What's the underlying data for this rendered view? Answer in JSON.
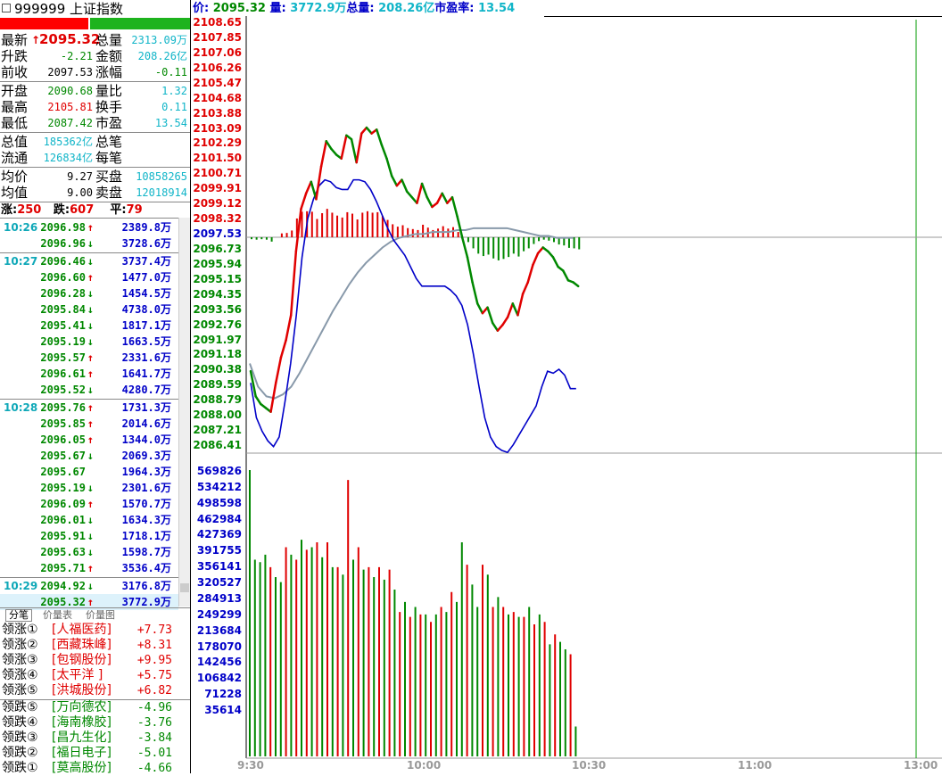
{
  "title": {
    "code": "999999",
    "name": "上证指数"
  },
  "quote": {
    "latest_label": "最新",
    "latest_arrow": "↑",
    "latest": "2095.32",
    "total_vol_label": "总量",
    "total_vol": "2313.09万",
    "change_label": "升跌",
    "change": "-2.21",
    "amount_label": "金额",
    "amount": "208.26亿",
    "prev_close_label": "前收",
    "prev_close": "2097.53",
    "pct_label": "涨幅",
    "pct": "-0.11",
    "open_label": "开盘",
    "open": "2090.68",
    "vol_ratio_label": "量比",
    "vol_ratio": "1.32",
    "high_label": "最高",
    "high": "2105.81",
    "turnover_label": "换手",
    "turnover": "0.11",
    "low_label": "最低",
    "low": "2087.42",
    "pe_label": "市盈",
    "pe": "13.54",
    "total_value_label": "总值",
    "total_value": "185362亿",
    "total_trades_label": "总笔",
    "float_value_label": "流通",
    "float_value": "126834亿",
    "per_trade_label": "每笔",
    "avg_price_label": "均价",
    "avg_price": "9.27",
    "buy_label": "买盘",
    "buy": "10858265",
    "avg_value_label": "均值",
    "avg_value": "9.00",
    "sell_label": "卖盘",
    "sell": "12018914",
    "up_label": "涨:",
    "up": "250",
    "down_label": "跌:",
    "down": "607",
    "flat_label": "平:",
    "flat": "79"
  },
  "ticks": [
    {
      "time": "10:26",
      "price": "2096.98",
      "dir": "up",
      "vol": "2389.8万"
    },
    {
      "time": "",
      "price": "2096.96",
      "dir": "down",
      "vol": "3728.6万"
    },
    {
      "time": "10:27",
      "price": "2096.46",
      "dir": "down",
      "vol": "3737.4万"
    },
    {
      "time": "",
      "price": "2096.60",
      "dir": "up",
      "vol": "1477.0万"
    },
    {
      "time": "",
      "price": "2096.28",
      "dir": "down",
      "vol": "1454.5万"
    },
    {
      "time": "",
      "price": "2095.84",
      "dir": "down",
      "vol": "4738.0万"
    },
    {
      "time": "",
      "price": "2095.41",
      "dir": "down",
      "vol": "1817.1万"
    },
    {
      "time": "",
      "price": "2095.19",
      "dir": "down",
      "vol": "1663.5万"
    },
    {
      "time": "",
      "price": "2095.57",
      "dir": "up",
      "vol": "2331.6万"
    },
    {
      "time": "",
      "price": "2096.61",
      "dir": "up",
      "vol": "1641.7万"
    },
    {
      "time": "",
      "price": "2095.52",
      "dir": "down",
      "vol": "4280.7万"
    },
    {
      "time": "10:28",
      "price": "2095.76",
      "dir": "up",
      "vol": "1731.3万"
    },
    {
      "time": "",
      "price": "2095.85",
      "dir": "up",
      "vol": "2014.6万"
    },
    {
      "time": "",
      "price": "2096.05",
      "dir": "up",
      "vol": "1344.0万"
    },
    {
      "time": "",
      "price": "2095.67",
      "dir": "down",
      "vol": "2069.3万"
    },
    {
      "time": "",
      "price": "2095.67",
      "dir": "flat",
      "vol": "1964.3万"
    },
    {
      "time": "",
      "price": "2095.19",
      "dir": "down",
      "vol": "2301.6万"
    },
    {
      "time": "",
      "price": "2096.09",
      "dir": "up",
      "vol": "1570.7万"
    },
    {
      "time": "",
      "price": "2096.01",
      "dir": "down",
      "vol": "1634.3万"
    },
    {
      "time": "",
      "price": "2095.91",
      "dir": "down",
      "vol": "1718.1万"
    },
    {
      "time": "",
      "price": "2095.63",
      "dir": "down",
      "vol": "1598.7万"
    },
    {
      "time": "",
      "price": "2095.71",
      "dir": "up",
      "vol": "3536.4万"
    },
    {
      "time": "10:29",
      "price": "2094.92",
      "dir": "down",
      "vol": "3176.8万"
    },
    {
      "time": "",
      "price": "2095.32",
      "dir": "up",
      "vol": "3772.9万"
    }
  ],
  "arrows": {
    "up": "↑",
    "down": "↓",
    "flat": ""
  },
  "tabs": [
    "分笔",
    "价量表",
    "价量图"
  ],
  "leaders_up": [
    {
      "label": "领涨①",
      "name": "[人福医药]",
      "chg": "+7.73"
    },
    {
      "label": "领涨②",
      "name": "[西藏珠峰]",
      "chg": "+8.31"
    },
    {
      "label": "领涨③",
      "name": "[包钢股份]",
      "chg": "+9.95"
    },
    {
      "label": "领涨④",
      "name": "[太平洋  ]",
      "chg": "+5.75"
    },
    {
      "label": "领涨⑤",
      "name": "[洪城股份]",
      "chg": "+6.82"
    }
  ],
  "leaders_down": [
    {
      "label": "领跌⑤",
      "name": "[万向德农]",
      "chg": "-4.96"
    },
    {
      "label": "领跌④",
      "name": "[海南橡胶]",
      "chg": "-3.76"
    },
    {
      "label": "领跌③",
      "name": "[昌九生化]",
      "chg": "-3.84"
    },
    {
      "label": "领跌②",
      "name": "[福日电子]",
      "chg": "-5.01"
    },
    {
      "label": "领跌①",
      "name": "[莫高股份]",
      "chg": "-4.66"
    }
  ],
  "top_info": {
    "price_label": "价:",
    "price": "2095.32",
    "vol_label": "量:",
    "vol": "3772.9万",
    "total_label": "总量:",
    "total": "208.26亿",
    "pe_label": "市盈率:",
    "pe": "13.54"
  },
  "colors": {
    "up": "#e00000",
    "down": "#008800",
    "avg": "#0000c8",
    "ma": "#8899aa"
  },
  "chart_data": {
    "type": "line",
    "x_ticks": [
      "9:30",
      "10:00",
      "10:30",
      "11:00",
      "13:00"
    ],
    "price_axis": [
      "2108.65",
      "2107.85",
      "2107.06",
      "2106.26",
      "2105.47",
      "2104.68",
      "2103.88",
      "2103.09",
      "2102.29",
      "2101.50",
      "2100.71",
      "2099.91",
      "2099.12",
      "2098.32",
      "2097.53",
      "2096.73",
      "2095.94",
      "2095.15",
      "2094.35",
      "2093.56",
      "2092.76",
      "2091.97",
      "2091.18",
      "2090.38",
      "2089.59",
      "2088.79",
      "2088.00",
      "2087.21",
      "2086.41"
    ],
    "volume_axis": [
      "569826",
      "534212",
      "498598",
      "462984",
      "427369",
      "391755",
      "356141",
      "320527",
      "284913",
      "249299",
      "213684",
      "178070",
      "142456",
      "106842",
      "71228",
      "35614"
    ],
    "prev_close": 2097.53,
    "price": [
      2090.6,
      2089.3,
      2088.9,
      2088.7,
      2088.5,
      2090.0,
      2091.3,
      2092.2,
      2093.5,
      2096.8,
      2099.0,
      2099.8,
      2100.4,
      2099.5,
      2101.2,
      2102.5,
      2102.1,
      2101.8,
      2101.6,
      2102.8,
      2102.6,
      2101.4,
      2102.9,
      2103.2,
      2102.9,
      2103.1,
      2102.3,
      2101.6,
      2100.7,
      2100.2,
      2100.5,
      2099.9,
      2099.6,
      2099.3,
      2100.3,
      2099.6,
      2099.1,
      2099.3,
      2099.8,
      2099.3,
      2099.6,
      2098.6,
      2097.5,
      2096.5,
      2095.2,
      2094.1,
      2093.6,
      2093.9,
      2093.1,
      2092.7,
      2093.0,
      2093.4,
      2094.1,
      2093.5,
      2094.6,
      2095.2,
      2096.1,
      2096.7,
      2097.0,
      2096.8,
      2096.5,
      2096.0,
      2095.8,
      2095.3,
      2095.2,
      2095.0
    ],
    "avg": [
      2090.0,
      2088.2,
      2087.5,
      2087.0,
      2086.7,
      2087.2,
      2089.0,
      2091.0,
      2093.5,
      2096.5,
      2098.5,
      2099.5,
      2100.2,
      2100.5,
      2100.4,
      2100.1,
      2100.0,
      2100.0,
      2100.5,
      2100.5,
      2100.4,
      2100.0,
      2099.4,
      2098.7,
      2098.0,
      2097.4,
      2097.0,
      2096.6,
      2096.0,
      2095.4,
      2095.0,
      2095.0,
      2095.0,
      2095.0,
      2095.0,
      2094.8,
      2094.5,
      2094.0,
      2093.0,
      2091.5,
      2089.8,
      2088.2,
      2087.2,
      2086.7,
      2086.5,
      2086.4,
      2086.8,
      2087.3,
      2087.8,
      2088.3,
      2088.8,
      2089.8,
      2090.6,
      2090.5,
      2090.7,
      2090.4,
      2089.7,
      2089.7
    ],
    "ma": [
      2091.0,
      2089.8,
      2089.3,
      2089.2,
      2089.4,
      2089.8,
      2090.5,
      2091.3,
      2092.1,
      2092.9,
      2093.7,
      2094.4,
      2095.1,
      2095.7,
      2096.2,
      2096.6,
      2097.0,
      2097.3,
      2097.5,
      2097.6,
      2097.7,
      2097.7,
      2097.8,
      2097.8,
      2097.8,
      2097.9,
      2097.9,
      2098.0,
      2098.0,
      2098.0,
      2098.0,
      2098.0,
      2097.9,
      2097.8,
      2097.7,
      2097.6,
      2097.6,
      2097.5,
      2097.5,
      2097.5
    ],
    "volume": [
      575000,
      395000,
      390000,
      405000,
      380000,
      360000,
      350000,
      420000,
      405000,
      395000,
      435000,
      415000,
      420000,
      430000,
      400000,
      430000,
      380000,
      380000,
      365000,
      555000,
      395000,
      420000,
      375000,
      380000,
      360000,
      380000,
      355000,
      375000,
      335000,
      290000,
      310000,
      280000,
      300000,
      285000,
      285000,
      270000,
      285000,
      300000,
      290000,
      330000,
      310000,
      430000,
      385000,
      345000,
      300000,
      385000,
      365000,
      300000,
      320000,
      300000,
      285000,
      290000,
      280000,
      280000,
      300000,
      265000,
      285000,
      270000,
      225000,
      245000,
      230000,
      215000,
      205000,
      60000
    ],
    "vol_dir": [
      "d",
      "d",
      "d",
      "d",
      "u",
      "d",
      "d",
      "u",
      "d",
      "u",
      "d",
      "u",
      "d",
      "u",
      "d",
      "u",
      "d",
      "u",
      "d",
      "u",
      "d",
      "u",
      "d",
      "u",
      "d",
      "u",
      "d",
      "u",
      "d",
      "u",
      "d",
      "u",
      "d",
      "u",
      "d",
      "u",
      "d",
      "u",
      "d",
      "u",
      "d",
      "d",
      "u",
      "d",
      "d",
      "u",
      "d",
      "u",
      "d",
      "u",
      "d",
      "u",
      "d",
      "u",
      "d",
      "u",
      "d",
      "u",
      "d",
      "u",
      "d",
      "d",
      "u",
      "d"
    ]
  }
}
